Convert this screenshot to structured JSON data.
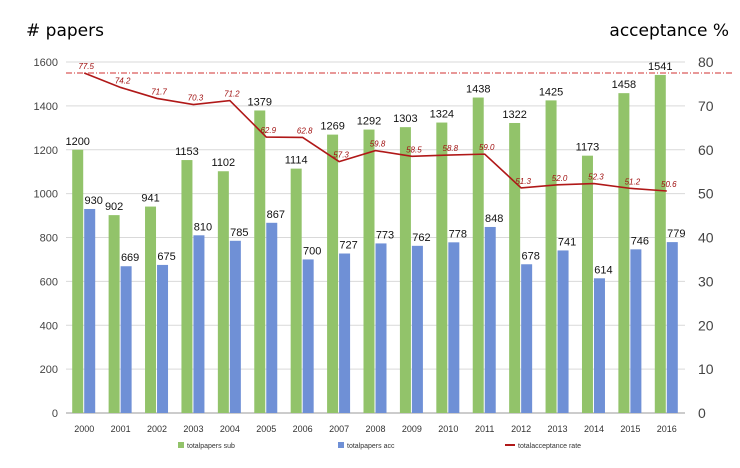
{
  "chart_data": {
    "type": "bar",
    "title": "",
    "ylabel": "# papers",
    "y2label": "acceptance %",
    "ylim": [
      0,
      1600
    ],
    "y2lim": [
      0,
      80
    ],
    "yticks": [
      0,
      200,
      400,
      600,
      800,
      1000,
      1200,
      1400,
      1600
    ],
    "y2ticks": [
      0,
      10,
      20,
      30,
      40,
      50,
      60,
      70,
      80
    ],
    "categories": [
      "2000",
      "2001",
      "2002",
      "2003",
      "2004",
      "2005",
      "2006",
      "2007",
      "2008",
      "2009",
      "2010",
      "2011",
      "2012",
      "2013",
      "2014",
      "2015",
      "2016"
    ],
    "series": [
      {
        "name": "total papers sub",
        "kind": "bar",
        "color": "#92c36a",
        "values": [
          1200,
          902,
          941,
          1153,
          1102,
          1379,
          1114,
          1269,
          1292,
          1303,
          1324,
          1438,
          1322,
          1425,
          1173,
          1458,
          1541
        ]
      },
      {
        "name": "total papers acc",
        "kind": "bar",
        "color": "#6f90d6",
        "values": [
          930,
          669,
          675,
          810,
          785,
          867,
          700,
          727,
          773,
          762,
          778,
          848,
          678,
          741,
          614,
          746,
          779
        ]
      },
      {
        "name": "total acceptance rate",
        "kind": "line",
        "axis": "right",
        "color": "#b01818",
        "values": [
          77.5,
          74.2,
          71.7,
          70.3,
          71.2,
          62.9,
          62.8,
          57.3,
          59.8,
          58.5,
          58.8,
          59.0,
          51.3,
          52.0,
          52.3,
          51.2,
          50.6
        ]
      }
    ],
    "reference_line": {
      "axis": "right",
      "value": 77.5,
      "color": "#d03030",
      "style": "dashed"
    },
    "legend": {
      "position": "bottom",
      "entries": [
        "totalpapers sub",
        "totalpapers acc",
        "totalacceptance rate"
      ]
    },
    "grid": true
  }
}
